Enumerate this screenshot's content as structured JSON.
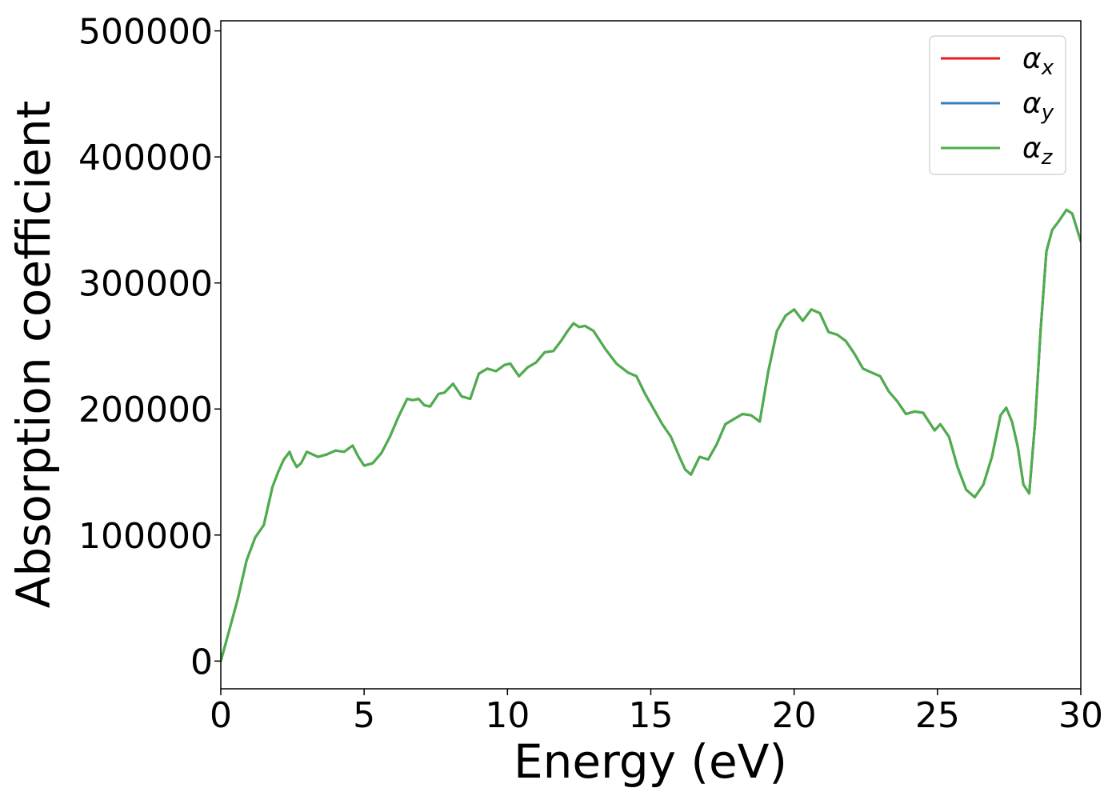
{
  "chart_data": {
    "type": "line",
    "title": "",
    "xlabel": "Energy (eV)",
    "ylabel": "Absorption coefficient",
    "xlim": [
      0,
      30
    ],
    "ylim": [
      -22000,
      508000
    ],
    "xticks": [
      0,
      5,
      10,
      15,
      20,
      25,
      30
    ],
    "yticks": [
      0,
      100000,
      200000,
      300000,
      400000,
      500000
    ],
    "grid": false,
    "legend": {
      "position": "top-right",
      "entries": [
        {
          "label_base": "α",
          "label_sub": "x",
          "color": "#e41a1c"
        },
        {
          "label_base": "α",
          "label_sub": "y",
          "color": "#377eb8"
        },
        {
          "label_base": "α",
          "label_sub": "z",
          "color": "#4daf4a"
        }
      ]
    },
    "x": [
      0,
      0.3,
      0.6,
      0.9,
      1.2,
      1.5,
      1.8,
      2.0,
      2.2,
      2.4,
      2.5,
      2.65,
      2.8,
      3.0,
      3.2,
      3.4,
      3.7,
      4.0,
      4.3,
      4.6,
      4.8,
      5.0,
      5.3,
      5.6,
      5.9,
      6.2,
      6.5,
      6.7,
      6.9,
      7.1,
      7.3,
      7.6,
      7.8,
      8.1,
      8.4,
      8.7,
      9.0,
      9.3,
      9.6,
      9.9,
      10.1,
      10.4,
      10.7,
      11.0,
      11.3,
      11.6,
      11.9,
      12.1,
      12.3,
      12.5,
      12.7,
      13.0,
      13.4,
      13.8,
      14.2,
      14.5,
      14.8,
      15.1,
      15.4,
      15.7,
      16.0,
      16.2,
      16.4,
      16.7,
      17.0,
      17.3,
      17.6,
      17.9,
      18.2,
      18.5,
      18.8,
      19.1,
      19.4,
      19.7,
      20.0,
      20.3,
      20.6,
      20.9,
      21.2,
      21.5,
      21.8,
      22.1,
      22.4,
      22.7,
      23.0,
      23.3,
      23.6,
      23.9,
      24.2,
      24.5,
      24.7,
      24.9,
      25.1,
      25.4,
      25.7,
      26.0,
      26.3,
      26.6,
      26.9,
      27.2,
      27.4,
      27.6,
      27.8,
      28.0,
      28.2,
      28.4,
      28.6,
      28.8,
      29.0,
      29.2,
      29.5,
      29.7,
      30.0
    ],
    "series": [
      {
        "name": "α_x",
        "color": "#e41a1c",
        "values": [
          0,
          25000,
          50000,
          80000,
          98000,
          108000,
          138000,
          150000,
          160000,
          166000,
          160000,
          154000,
          157000,
          166000,
          164000,
          162000,
          164000,
          167000,
          166000,
          171000,
          162000,
          155000,
          157000,
          165000,
          178000,
          194000,
          208000,
          207000,
          208000,
          203000,
          202000,
          212000,
          213000,
          220000,
          210000,
          208000,
          228000,
          232000,
          230000,
          235000,
          236000,
          226000,
          233000,
          237000,
          245000,
          246000,
          255000,
          262000,
          268000,
          265000,
          266000,
          262000,
          248000,
          236000,
          229000,
          226000,
          212000,
          200000,
          188000,
          178000,
          162000,
          152000,
          148000,
          162000,
          160000,
          172000,
          188000,
          192000,
          196000,
          195000,
          190000,
          230000,
          262000,
          274000,
          279000,
          270000,
          279000,
          276000,
          261000,
          259000,
          254000,
          244000,
          232000,
          229000,
          226000,
          214000,
          206000,
          196000,
          198000,
          197000,
          190000,
          183000,
          188000,
          178000,
          154000,
          136000,
          130000,
          140000,
          162000,
          195000,
          201000,
          190000,
          170000,
          140000,
          133000,
          188000,
          263000,
          325000,
          342000,
          348000,
          358000,
          355000,
          333000
        ]
      },
      {
        "name": "α_y",
        "color": "#377eb8",
        "values": [
          0,
          25000,
          50000,
          80000,
          98000,
          108000,
          138000,
          150000,
          160000,
          166000,
          160000,
          154000,
          157000,
          166000,
          164000,
          162000,
          164000,
          167000,
          166000,
          171000,
          162000,
          155000,
          157000,
          165000,
          178000,
          194000,
          208000,
          207000,
          208000,
          203000,
          202000,
          212000,
          213000,
          220000,
          210000,
          208000,
          228000,
          232000,
          230000,
          235000,
          236000,
          226000,
          233000,
          237000,
          245000,
          246000,
          255000,
          262000,
          268000,
          265000,
          266000,
          262000,
          248000,
          236000,
          229000,
          226000,
          212000,
          200000,
          188000,
          178000,
          162000,
          152000,
          148000,
          162000,
          160000,
          172000,
          188000,
          192000,
          196000,
          195000,
          190000,
          230000,
          262000,
          274000,
          279000,
          270000,
          279000,
          276000,
          261000,
          259000,
          254000,
          244000,
          232000,
          229000,
          226000,
          214000,
          206000,
          196000,
          198000,
          197000,
          190000,
          183000,
          188000,
          178000,
          154000,
          136000,
          130000,
          140000,
          162000,
          195000,
          201000,
          190000,
          170000,
          140000,
          133000,
          188000,
          263000,
          325000,
          342000,
          348000,
          358000,
          355000,
          333000
        ]
      },
      {
        "name": "α_z",
        "color": "#4daf4a",
        "values": [
          0,
          25000,
          50000,
          80000,
          98000,
          108000,
          138000,
          150000,
          160000,
          166000,
          160000,
          154000,
          157000,
          166000,
          164000,
          162000,
          164000,
          167000,
          166000,
          171000,
          162000,
          155000,
          157000,
          165000,
          178000,
          194000,
          208000,
          207000,
          208000,
          203000,
          202000,
          212000,
          213000,
          220000,
          210000,
          208000,
          228000,
          232000,
          230000,
          235000,
          236000,
          226000,
          233000,
          237000,
          245000,
          246000,
          255000,
          262000,
          268000,
          265000,
          266000,
          262000,
          248000,
          236000,
          229000,
          226000,
          212000,
          200000,
          188000,
          178000,
          162000,
          152000,
          148000,
          162000,
          160000,
          172000,
          188000,
          192000,
          196000,
          195000,
          190000,
          230000,
          262000,
          274000,
          279000,
          270000,
          279000,
          276000,
          261000,
          259000,
          254000,
          244000,
          232000,
          229000,
          226000,
          214000,
          206000,
          196000,
          198000,
          197000,
          190000,
          183000,
          188000,
          178000,
          154000,
          136000,
          130000,
          140000,
          162000,
          195000,
          201000,
          190000,
          170000,
          140000,
          133000,
          188000,
          263000,
          325000,
          342000,
          348000,
          358000,
          355000,
          333000
        ]
      }
    ]
  }
}
